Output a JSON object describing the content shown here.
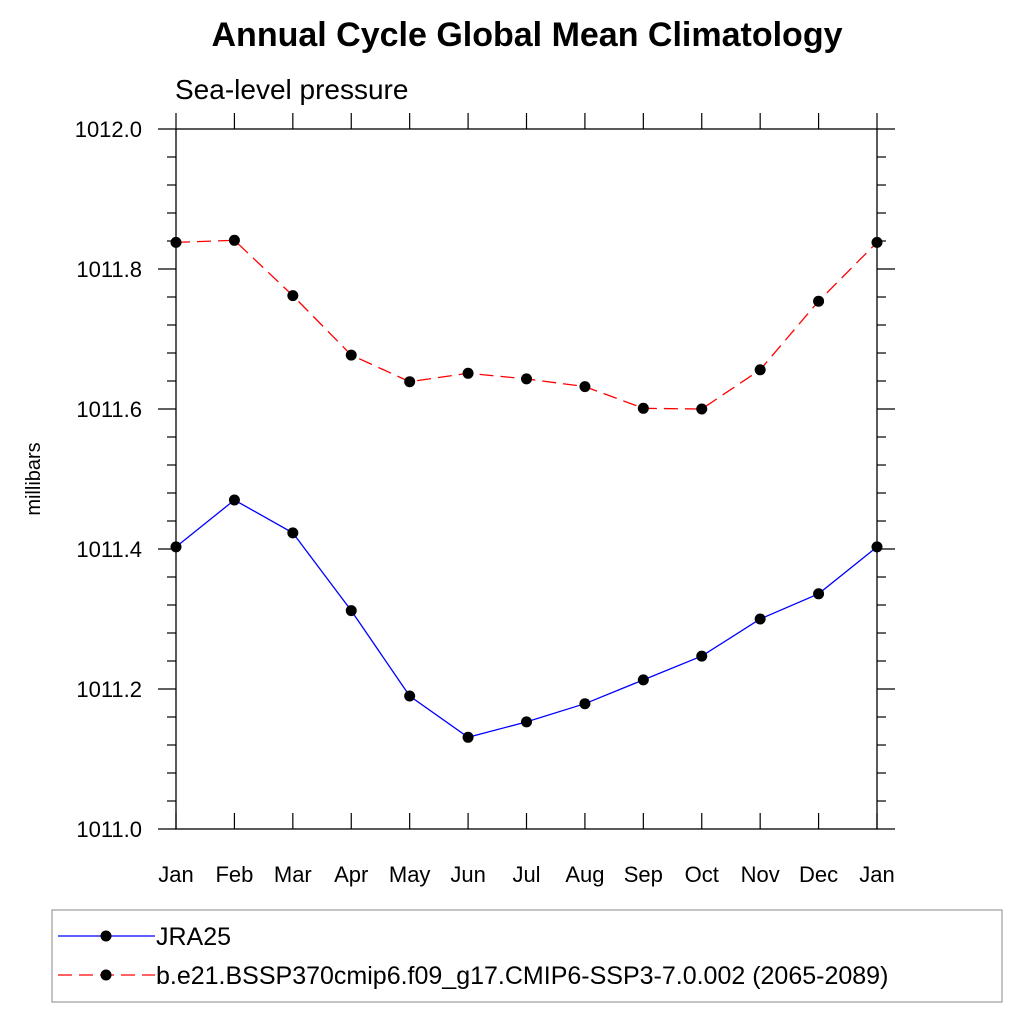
{
  "chart_data": {
    "type": "line",
    "title": "Annual Cycle Global Mean Climatology",
    "subtitle": "Sea-level pressure",
    "xlabel": "",
    "ylabel": "millibars",
    "categories": [
      "Jan",
      "Feb",
      "Mar",
      "Apr",
      "May",
      "Jun",
      "Jul",
      "Aug",
      "Sep",
      "Oct",
      "Nov",
      "Dec",
      "Jan"
    ],
    "ylim": [
      1011.0,
      1012.0
    ],
    "yticks": [
      "1011.0",
      "1011.2",
      "1011.4",
      "1011.6",
      "1011.8",
      "1012.0"
    ],
    "grid": false,
    "legend_position": "bottom",
    "series": [
      {
        "name": "JRA25",
        "color": "#0000ff",
        "dash": "solid",
        "marker": "circle",
        "values": [
          1011.403,
          1011.47,
          1011.423,
          1011.312,
          1011.19,
          1011.131,
          1011.153,
          1011.179,
          1011.213,
          1011.247,
          1011.3,
          1011.336,
          1011.403
        ]
      },
      {
        "name": "b.e21.BSSP370cmip6.f09_g17.CMIP6-SSP3-7.0.002 (2065-2089)",
        "color": "#ff0000",
        "dash": "dashed",
        "marker": "circle",
        "values": [
          1011.838,
          1011.841,
          1011.762,
          1011.677,
          1011.639,
          1011.651,
          1011.643,
          1011.632,
          1011.601,
          1011.6,
          1011.656,
          1011.754,
          1011.838
        ]
      }
    ]
  }
}
